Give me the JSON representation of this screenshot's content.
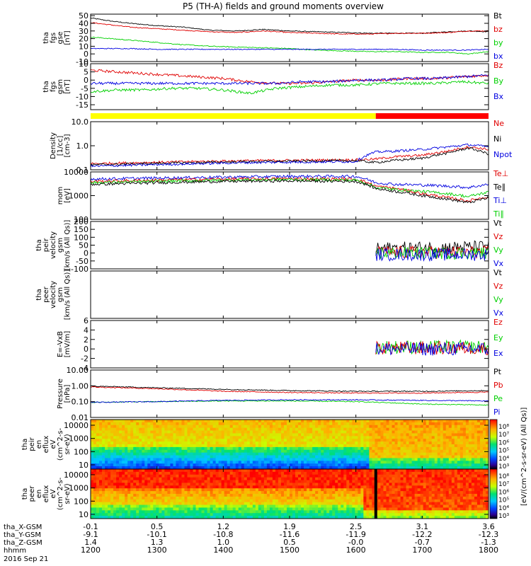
{
  "title": "P5 (TH-A) fields and ground moments overview",
  "colors": {
    "black": "#000000",
    "red": "#e00000",
    "green": "#00d000",
    "blue": "#0000e0",
    "yellow": "#ffff00",
    "flag_red": "#ff0000"
  },
  "chart_data": [
    {
      "id": "fgs_gse",
      "type": "line",
      "ylabel": [
        "tha",
        "fgs",
        "gse",
        "[nT]"
      ],
      "yticks": [
        "50",
        "40",
        "30",
        "20",
        "10",
        "0",
        "-10"
      ],
      "ylim": [
        -10,
        52
      ],
      "legend": [
        {
          "label": "Bt",
          "color": "#000000"
        },
        {
          "label": "bz",
          "color": "#e00000"
        },
        {
          "label": "by",
          "color": "#00d000"
        },
        {
          "label": "bx",
          "color": "#0000e0"
        }
      ],
      "series": [
        {
          "color": "#000000",
          "x": [
            1200,
            1230,
            1260,
            1300,
            1340,
            1380,
            1420,
            1460,
            1500,
            1540,
            1580,
            1620,
            1660,
            1700,
            1740,
            1770,
            1800
          ],
          "y": [
            47,
            43,
            40,
            37,
            35,
            31,
            30,
            32,
            30,
            29,
            28,
            27,
            27,
            27,
            29,
            30,
            29
          ]
        },
        {
          "color": "#e00000",
          "x": [
            1200,
            1230,
            1260,
            1300,
            1340,
            1380,
            1420,
            1460,
            1500,
            1540,
            1580,
            1620,
            1660,
            1700,
            1740,
            1770,
            1800
          ],
          "y": [
            41,
            38,
            35,
            33,
            31,
            29,
            28,
            30,
            28,
            27,
            26,
            26,
            27,
            27,
            28,
            30,
            30
          ]
        },
        {
          "color": "#00d000",
          "x": [
            1200,
            1230,
            1260,
            1300,
            1340,
            1380,
            1420,
            1460,
            1500,
            1540,
            1580,
            1620,
            1660,
            1700,
            1740,
            1770,
            1800
          ],
          "y": [
            22,
            20,
            18,
            15,
            12,
            10,
            9,
            8,
            7,
            5,
            4,
            3,
            3,
            2,
            2,
            0,
            3
          ]
        },
        {
          "color": "#0000e0",
          "x": [
            1200,
            1230,
            1260,
            1300,
            1340,
            1380,
            1420,
            1460,
            1500,
            1540,
            1580,
            1620,
            1660,
            1700,
            1740,
            1770,
            1800
          ],
          "y": [
            7,
            7,
            7,
            6,
            6,
            6,
            6,
            6,
            6,
            6,
            6,
            6,
            6,
            5,
            5,
            5,
            6
          ]
        }
      ],
      "noise": 0.6
    },
    {
      "id": "fgs_gsm",
      "type": "line",
      "ylabel": [
        "tha",
        "fgs",
        "gsm",
        "[nT]"
      ],
      "yticks": [
        "10",
        "5",
        "0",
        "-5",
        "-10",
        "-15"
      ],
      "ylim": [
        -18,
        10
      ],
      "legend": [
        {
          "label": "Bz",
          "color": "#e00000"
        },
        {
          "label": "By",
          "color": "#00d000"
        },
        {
          "label": "Bx",
          "color": "#0000e0"
        }
      ],
      "series": [
        {
          "color": "#e00000",
          "x": [
            1200,
            1240,
            1280,
            1320,
            1360,
            1400,
            1440,
            1480,
            1520,
            1560,
            1600,
            1640,
            1680,
            1720,
            1760,
            1800
          ],
          "y": [
            6,
            5,
            4,
            3,
            2,
            1,
            -1,
            -2,
            -2,
            -1,
            0,
            0,
            1,
            1,
            2,
            3
          ]
        },
        {
          "color": "#00d000",
          "x": [
            1200,
            1240,
            1280,
            1320,
            1360,
            1400,
            1440,
            1480,
            1520,
            1560,
            1600,
            1640,
            1680,
            1720,
            1760,
            1800
          ],
          "y": [
            -7,
            -6,
            -6,
            -5,
            -5,
            -6,
            -8,
            -5,
            -4,
            -3,
            -3,
            -2,
            -2,
            -2,
            -1,
            -2
          ]
        },
        {
          "color": "#0000e0",
          "x": [
            1200,
            1240,
            1280,
            1320,
            1360,
            1400,
            1440,
            1480,
            1520,
            1560,
            1600,
            1640,
            1680,
            1720,
            1760,
            1800
          ],
          "y": [
            -2,
            -2,
            -2,
            -2,
            -2,
            -2,
            -2,
            -2,
            -1,
            -1,
            0,
            0,
            1,
            1,
            2,
            3
          ]
        }
      ],
      "noise": 0.8
    },
    {
      "id": "density",
      "type": "line",
      "yscale": "log",
      "ylabel": [
        "Density",
        "[1/cc]",
        "[cm-3]"
      ],
      "yticks": [
        "10.0",
        "1.0",
        "0.1"
      ],
      "ylim": [
        0.1,
        10
      ],
      "legend": [
        {
          "label": "Ne",
          "color": "#e00000"
        },
        {
          "label": "Ni",
          "color": "#000000"
        },
        {
          "label": "Npot",
          "color": "#0000e0"
        }
      ],
      "series": [
        {
          "color": "#e00000",
          "x": [
            1200,
            1280,
            1360,
            1440,
            1520,
            1600,
            1630,
            1660,
            1700,
            1740,
            1770,
            1800
          ],
          "y": [
            0.18,
            0.2,
            0.22,
            0.24,
            0.25,
            0.26,
            0.28,
            0.35,
            0.4,
            0.6,
            0.9,
            0.7
          ]
        },
        {
          "color": "#000000",
          "x": [
            1200,
            1280,
            1360,
            1440,
            1520,
            1600,
            1630,
            1660,
            1700,
            1740,
            1770,
            1800
          ],
          "y": [
            0.16,
            0.18,
            0.2,
            0.22,
            0.23,
            0.24,
            0.2,
            0.25,
            0.3,
            0.5,
            0.8,
            0.45
          ]
        },
        {
          "color": "#0000e0",
          "x": [
            1200,
            1280,
            1360,
            1440,
            1520,
            1600,
            1630,
            1660,
            1700,
            1740,
            1770,
            1800
          ],
          "y": [
            0.14,
            0.16,
            0.18,
            0.2,
            0.21,
            0.22,
            0.55,
            0.6,
            0.7,
            0.9,
            1.1,
            0.9
          ]
        }
      ],
      "noise": 0.05
    },
    {
      "id": "temperature",
      "type": "line",
      "yscale": "log",
      "ylabel": [
        "mom",
        "[eV]"
      ],
      "yticks": [
        "10000",
        "1000",
        "100"
      ],
      "ylim": [
        100,
        10000
      ],
      "legend": [
        {
          "label": "Te⊥",
          "color": "#e00000"
        },
        {
          "label": "Te∥",
          "color": "#000000"
        },
        {
          "label": "Ti⊥",
          "color": "#0000e0"
        },
        {
          "label": "Ti∥",
          "color": "#00d000"
        }
      ],
      "series": [
        {
          "color": "#0000e0",
          "x": [
            1200,
            1300,
            1400,
            1500,
            1600,
            1630,
            1660,
            1700,
            1740,
            1770,
            1800
          ],
          "y": [
            5000,
            5500,
            6000,
            6500,
            6500,
            3500,
            3000,
            2800,
            2500,
            2200,
            3000
          ]
        },
        {
          "color": "#e00000",
          "x": [
            1200,
            1300,
            1400,
            1500,
            1600,
            1630,
            1660,
            1700,
            1740,
            1770,
            1800
          ],
          "y": [
            4000,
            4500,
            5000,
            5200,
            5000,
            2500,
            2000,
            1200,
            800,
            600,
            900
          ]
        },
        {
          "color": "#00d000",
          "x": [
            1200,
            1300,
            1400,
            1500,
            1600,
            1630,
            1660,
            1700,
            1740,
            1770,
            1800
          ],
          "y": [
            3500,
            4000,
            4500,
            4800,
            4500,
            2200,
            1800,
            1500,
            1200,
            900,
            1400
          ]
        },
        {
          "color": "#000000",
          "x": [
            1200,
            1300,
            1400,
            1500,
            1600,
            1630,
            1660,
            1700,
            1740,
            1770,
            1800
          ],
          "y": [
            3000,
            3500,
            4000,
            4200,
            4000,
            2000,
            1500,
            1000,
            700,
            500,
            800
          ]
        }
      ],
      "noise": 0.06
    },
    {
      "id": "peir_velocity",
      "type": "line",
      "ylabel": [
        "tha",
        "peir",
        "velocity",
        "gsm",
        "[km/s (All Qs)]"
      ],
      "yticks": [
        "200",
        "150",
        "100",
        "50",
        "0",
        "-50",
        "-100"
      ],
      "ylim": [
        -100,
        200
      ],
      "legend": [
        {
          "label": "Vt",
          "color": "#000000"
        },
        {
          "label": "Vz",
          "color": "#e00000"
        },
        {
          "label": "Vy",
          "color": "#00d000"
        },
        {
          "label": "Vx",
          "color": "#0000e0"
        }
      ],
      "series": [
        {
          "color": "#000000",
          "x": [
            1630,
            1800
          ],
          "y": [
            30,
            40
          ]
        },
        {
          "color": "#e00000",
          "x": [
            1630,
            1800
          ],
          "y": [
            5,
            5
          ]
        },
        {
          "color": "#00d000",
          "x": [
            1630,
            1800
          ],
          "y": [
            0,
            0
          ]
        },
        {
          "color": "#0000e0",
          "x": [
            1630,
            1800
          ],
          "y": [
            -10,
            -10
          ]
        }
      ],
      "noise": 25
    },
    {
      "id": "peer_velocity",
      "type": "line",
      "ylabel": [
        "tha",
        "peer",
        "velocity",
        "gsm",
        "[km/s (All Qs)]"
      ],
      "yticks": [],
      "ylim": [
        0,
        1
      ],
      "legend": [
        {
          "label": "Vt",
          "color": "#000000"
        },
        {
          "label": "Vz",
          "color": "#e00000"
        },
        {
          "label": "Vy",
          "color": "#00d000"
        },
        {
          "label": "Vx",
          "color": "#0000e0"
        }
      ],
      "series": []
    },
    {
      "id": "efield",
      "type": "line",
      "ylabel": [
        "E=-VxB",
        "[mV/m]"
      ],
      "yticks": [
        "6",
        "4",
        "2",
        "0",
        "-2",
        "-4"
      ],
      "ylim": [
        -4,
        6
      ],
      "legend": [
        {
          "label": "Ez",
          "color": "#e00000"
        },
        {
          "label": "Ey",
          "color": "#00d000"
        },
        {
          "label": "Ex",
          "color": "#0000e0"
        }
      ],
      "series": [
        {
          "color": "#00d000",
          "x": [
            1630,
            1800
          ],
          "y": [
            0.4,
            0.4
          ]
        },
        {
          "color": "#e00000",
          "x": [
            1630,
            1800
          ],
          "y": [
            0.2,
            0.2
          ]
        },
        {
          "color": "#0000e0",
          "x": [
            1630,
            1800
          ],
          "y": [
            0,
            0
          ]
        }
      ],
      "noise": 0.9
    },
    {
      "id": "pressure",
      "type": "line",
      "yscale": "log",
      "ylabel": [
        "Pressure",
        "[nPa]"
      ],
      "yticks": [
        "10.00",
        "1.00",
        "0.10",
        "0.01"
      ],
      "ylim": [
        0.01,
        10
      ],
      "legend": [
        {
          "label": "Pt",
          "color": "#000000"
        },
        {
          "label": "Pb",
          "color": "#e00000"
        },
        {
          "label": "Pe",
          "color": "#00d000"
        },
        {
          "label": "Pi",
          "color": "#0000e0"
        }
      ],
      "series": [
        {
          "color": "#000000",
          "x": [
            1200,
            1300,
            1400,
            1500,
            1600,
            1700,
            1800
          ],
          "y": [
            0.95,
            0.75,
            0.6,
            0.5,
            0.45,
            0.45,
            0.5
          ]
        },
        {
          "color": "#e00000",
          "x": [
            1200,
            1300,
            1400,
            1500,
            1600,
            1700,
            1800
          ],
          "y": [
            0.85,
            0.65,
            0.45,
            0.38,
            0.35,
            0.35,
            0.4
          ]
        },
        {
          "color": "#00d000",
          "x": [
            1200,
            1300,
            1400,
            1500,
            1600,
            1700,
            1800
          ],
          "y": [
            0.09,
            0.1,
            0.11,
            0.11,
            0.1,
            0.07,
            0.06
          ]
        },
        {
          "color": "#0000e0",
          "x": [
            1200,
            1300,
            1400,
            1500,
            1600,
            1700,
            1800
          ],
          "y": [
            0.09,
            0.1,
            0.12,
            0.13,
            0.13,
            0.12,
            0.11
          ]
        }
      ],
      "noise": 0.03
    },
    {
      "id": "peir_spectrogram",
      "type": "heatmap",
      "ylabel": [
        "tha",
        "peir",
        "en",
        "eflux",
        "eV",
        "(cm^2-s-",
        "sr-eV)"
      ],
      "yticks": [
        "10000",
        "1000",
        "100",
        "10"
      ]
    },
    {
      "id": "peer_spectrogram",
      "type": "heatmap",
      "ylabel": [
        "tha",
        "peer",
        "en",
        "eflux",
        "eV",
        "(cm^2-s-",
        "sr-eV)"
      ],
      "yticks": [
        "10000",
        "1000",
        "100",
        "10"
      ]
    }
  ],
  "colorbar": {
    "label": "[eV/(cm^2-s-sr-eV) (All Qs)]",
    "upper_ticks": [
      "10⁸",
      "10⁷",
      "10⁶",
      "10⁵",
      "10⁴",
      "10³"
    ],
    "lower_ticks": [
      "10⁸",
      "10⁷",
      "10⁶",
      "10⁵",
      "10⁴",
      "10³"
    ]
  },
  "x_axis": {
    "min": 1200,
    "max": 1800,
    "rows": [
      {
        "label": "tha_X-GSM",
        "values": [
          "-0.1",
          "0.5",
          "1.2",
          "1.9",
          "2.5",
          "3.1",
          "3.6"
        ]
      },
      {
        "label": "tha_Y-GSM",
        "values": [
          "-9.1",
          "-10.1",
          "-10.8",
          "-11.6",
          "-11.9",
          "-12.2",
          "-12.3"
        ]
      },
      {
        "label": "tha_Z-GSM",
        "values": [
          "1.4",
          "1.3",
          "1.0",
          "0.5",
          "-0.0",
          "-0.7",
          "-1.3"
        ]
      },
      {
        "label": "hhmm",
        "values": [
          "1200",
          "1300",
          "1400",
          "1500",
          "1600",
          "1700",
          "1800"
        ]
      }
    ],
    "date": "2016 Sep 21"
  },
  "flag_bar": {
    "yellow_until": 1630,
    "red_from": 1630
  }
}
